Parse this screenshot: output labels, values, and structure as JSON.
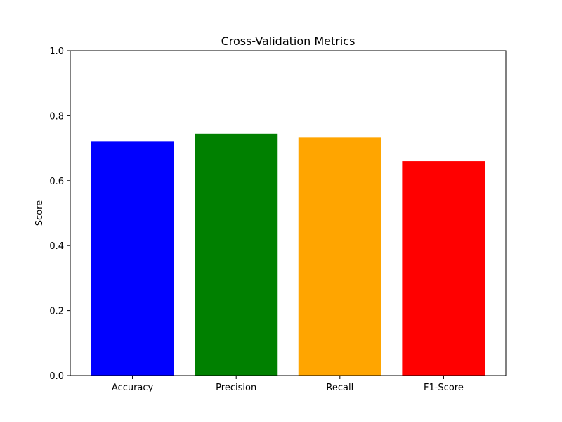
{
  "chart_data": {
    "type": "bar",
    "title": "Cross-Validation Metrics",
    "xlabel": "",
    "ylabel": "Score",
    "categories": [
      "Accuracy",
      "Precision",
      "Recall",
      "F1-Score"
    ],
    "values": [
      0.72,
      0.745,
      0.733,
      0.66
    ],
    "colors": [
      "#0000ff",
      "#008000",
      "#ffa500",
      "#ff0000"
    ],
    "ylim": [
      0,
      1.0
    ],
    "yticks": [
      0.0,
      0.2,
      0.4,
      0.6,
      0.8,
      1.0
    ],
    "ytick_labels": [
      "0.0",
      "0.2",
      "0.4",
      "0.6",
      "0.8",
      "1.0"
    ],
    "grid": false,
    "legend": "none"
  }
}
